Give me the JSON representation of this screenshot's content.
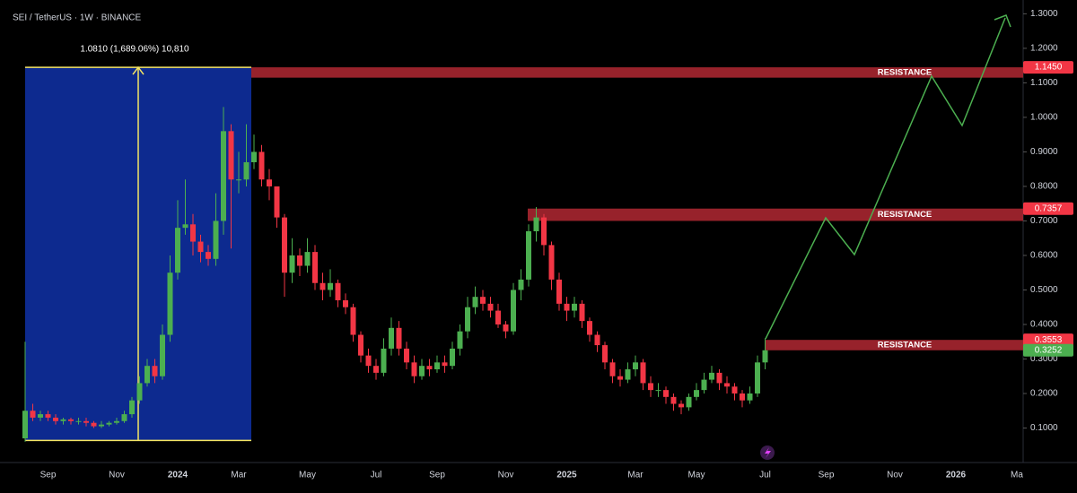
{
  "chart_data": {
    "type": "candlestick",
    "title": "SEI / TetherUS · 1W · BINANCE",
    "categories": [
      null,
      null,
      null,
      "Sep",
      null,
      null,
      null,
      null,
      null,
      null,
      null,
      null,
      "Nov",
      null,
      null,
      null,
      null,
      null,
      null,
      null,
      "2024",
      null,
      null,
      null,
      null,
      null,
      null,
      null,
      "Mar",
      null,
      null,
      null,
      null,
      null,
      null,
      null,
      null,
      "May",
      null,
      null,
      null,
      null,
      null,
      null,
      null,
      null,
      "Jul",
      null,
      null,
      null,
      null,
      null,
      null,
      null,
      "Sep",
      null,
      null,
      null,
      null,
      null,
      null,
      null,
      null,
      "Nov",
      null,
      null,
      null,
      null,
      null,
      null,
      null,
      "2025",
      null,
      null,
      null,
      null,
      null,
      null,
      null,
      null,
      "Mar",
      null,
      null,
      null,
      null,
      null,
      null,
      null,
      "May",
      null,
      null,
      null,
      null,
      null,
      null,
      null,
      null,
      "Jul",
      null,
      null,
      null,
      null,
      null,
      null,
      null,
      "Sep",
      null,
      null,
      null,
      null,
      null,
      null,
      null,
      null,
      "Nov",
      null,
      null,
      null,
      null,
      null,
      null,
      null,
      "2026",
      null,
      null,
      null,
      null,
      null,
      null,
      null,
      "Ma"
    ],
    "open": [
      0.07,
      0.15,
      0.13,
      0.14,
      0.13,
      0.12,
      0.125,
      0.12,
      0.12,
      0.115,
      0.105,
      0.11,
      0.115,
      0.12,
      0.14,
      0.18,
      0.23,
      0.28,
      0.25,
      0.37,
      0.55,
      0.68,
      0.69,
      0.64,
      0.61,
      0.59,
      0.7,
      0.96,
      0.82,
      0.82,
      0.87,
      0.9,
      0.82,
      0.8,
      0.71,
      0.55,
      0.6,
      0.57,
      0.61,
      0.52,
      0.5,
      0.52,
      0.47,
      0.45,
      0.37,
      0.31,
      0.28,
      0.26,
      0.33,
      0.39,
      0.33,
      0.29,
      0.25,
      0.28,
      0.27,
      0.29,
      0.28,
      0.33,
      0.38,
      0.45,
      0.48,
      0.46,
      0.44,
      0.4,
      0.38,
      0.5,
      0.53,
      0.67,
      0.71,
      0.63,
      0.53,
      0.46,
      0.44,
      0.46,
      0.41,
      0.37,
      0.34,
      0.29,
      0.25,
      0.24,
      0.27,
      0.29,
      0.23,
      0.21,
      0.21,
      0.19,
      0.17,
      0.16,
      0.19,
      0.21,
      0.24,
      0.26,
      0.23,
      0.22,
      0.2,
      0.18,
      0.2,
      0.29,
      null,
      null,
      null,
      null,
      null,
      null,
      null,
      null,
      null,
      null,
      null,
      null,
      null,
      null,
      null,
      null,
      null,
      null,
      null,
      null,
      null,
      null,
      null,
      null,
      null,
      null,
      null,
      null,
      null,
      null,
      null,
      null,
      null
    ],
    "high": [
      0.35,
      0.17,
      0.15,
      0.15,
      0.14,
      0.13,
      0.13,
      0.13,
      0.13,
      0.12,
      0.12,
      0.12,
      0.13,
      0.15,
      0.19,
      0.25,
      0.3,
      0.3,
      0.4,
      0.6,
      0.76,
      0.82,
      0.72,
      0.66,
      0.63,
      0.78,
      1.03,
      0.98,
      0.9,
      0.98,
      0.95,
      0.92,
      0.85,
      0.8,
      0.72,
      0.65,
      0.62,
      0.65,
      0.63,
      0.55,
      0.56,
      0.53,
      0.49,
      0.46,
      0.38,
      0.33,
      0.3,
      0.36,
      0.42,
      0.41,
      0.35,
      0.31,
      0.3,
      0.3,
      0.31,
      0.31,
      0.35,
      0.4,
      0.48,
      0.51,
      0.5,
      0.48,
      0.46,
      0.41,
      0.52,
      0.56,
      0.69,
      0.74,
      0.72,
      0.64,
      0.55,
      0.48,
      0.48,
      0.47,
      0.42,
      0.38,
      0.35,
      0.3,
      0.27,
      0.29,
      0.31,
      0.3,
      0.25,
      0.23,
      0.22,
      0.2,
      0.18,
      0.2,
      0.23,
      0.26,
      0.28,
      0.27,
      0.25,
      0.23,
      0.21,
      0.22,
      0.31,
      0.36,
      null,
      null,
      null,
      null,
      null,
      null,
      null,
      null,
      null,
      null,
      null,
      null,
      null,
      null,
      null,
      null,
      null,
      null,
      null,
      null,
      null,
      null,
      null,
      null,
      null,
      null,
      null,
      null,
      null,
      null,
      null,
      null,
      null
    ],
    "low": [
      0.06,
      0.12,
      0.12,
      0.12,
      0.11,
      0.11,
      0.11,
      0.11,
      0.105,
      0.1,
      0.1,
      0.105,
      0.11,
      0.115,
      0.13,
      0.17,
      0.22,
      0.23,
      0.24,
      0.35,
      0.53,
      0.66,
      0.6,
      0.58,
      0.57,
      0.57,
      0.66,
      0.62,
      0.78,
      0.8,
      0.85,
      0.8,
      0.76,
      0.68,
      0.48,
      0.52,
      0.54,
      0.55,
      0.5,
      0.47,
      0.48,
      0.45,
      0.43,
      0.35,
      0.29,
      0.26,
      0.24,
      0.25,
      0.31,
      0.31,
      0.27,
      0.23,
      0.24,
      0.25,
      0.26,
      0.26,
      0.27,
      0.31,
      0.36,
      0.43,
      0.44,
      0.42,
      0.39,
      0.36,
      0.37,
      0.47,
      0.51,
      0.64,
      0.6,
      0.5,
      0.44,
      0.41,
      0.42,
      0.39,
      0.35,
      0.32,
      0.27,
      0.23,
      0.22,
      0.23,
      0.25,
      0.21,
      0.19,
      0.19,
      0.17,
      0.15,
      0.14,
      0.15,
      0.18,
      0.2,
      0.23,
      0.21,
      0.2,
      0.18,
      0.16,
      0.17,
      0.19,
      0.27,
      null,
      null,
      null,
      null,
      null,
      null,
      null,
      null,
      null,
      null,
      null,
      null,
      null,
      null,
      null,
      null,
      null,
      null,
      null,
      null,
      null,
      null,
      null,
      null,
      null,
      null,
      null,
      null,
      null,
      null,
      null,
      null,
      null
    ],
    "close": [
      0.15,
      0.13,
      0.14,
      0.13,
      0.12,
      0.125,
      0.12,
      0.12,
      0.115,
      0.105,
      0.11,
      0.115,
      0.12,
      0.14,
      0.18,
      0.23,
      0.28,
      0.25,
      0.37,
      0.55,
      0.68,
      0.69,
      0.64,
      0.61,
      0.59,
      0.7,
      0.96,
      0.82,
      0.82,
      0.87,
      0.9,
      0.82,
      0.8,
      0.71,
      0.55,
      0.6,
      0.57,
      0.61,
      0.52,
      0.5,
      0.52,
      0.47,
      0.45,
      0.37,
      0.31,
      0.28,
      0.26,
      0.33,
      0.39,
      0.33,
      0.29,
      0.25,
      0.28,
      0.27,
      0.29,
      0.28,
      0.33,
      0.38,
      0.45,
      0.48,
      0.46,
      0.44,
      0.4,
      0.38,
      0.5,
      0.53,
      0.67,
      0.71,
      0.63,
      0.53,
      0.46,
      0.44,
      0.46,
      0.41,
      0.37,
      0.34,
      0.29,
      0.25,
      0.24,
      0.27,
      0.29,
      0.23,
      0.21,
      0.21,
      0.19,
      0.17,
      0.16,
      0.19,
      0.21,
      0.24,
      0.26,
      0.23,
      0.22,
      0.2,
      0.18,
      0.2,
      0.29,
      0.3252,
      null,
      null,
      null,
      null,
      null,
      null,
      null,
      null,
      null,
      null,
      null,
      null,
      null,
      null,
      null,
      null,
      null,
      null,
      null,
      null,
      null,
      null,
      null,
      null,
      null,
      null,
      null,
      null,
      null,
      null,
      null,
      null,
      null
    ],
    "up_color": "#4caf50",
    "down_color": "#f23645",
    "ylim": [
      0,
      1.34
    ],
    "yticks": [
      {
        "value": 0.1,
        "label": "0.1000"
      },
      {
        "value": 0.2,
        "label": "0.2000"
      },
      {
        "value": 0.3,
        "label": "0.3000"
      },
      {
        "value": 0.4,
        "label": "0.4000"
      },
      {
        "value": 0.5,
        "label": "0.5000"
      },
      {
        "value": 0.6,
        "label": "0.6000"
      },
      {
        "value": 0.7,
        "label": "0.7000"
      },
      {
        "value": 0.8,
        "label": "0.8000"
      },
      {
        "value": 0.9,
        "label": "0.9000"
      },
      {
        "value": 1.0,
        "label": "1.0000"
      },
      {
        "value": 1.1,
        "label": "1.1000"
      },
      {
        "value": 1.2,
        "label": "1.2000"
      },
      {
        "value": 1.3,
        "label": "1.3000"
      }
    ],
    "zones": [
      {
        "label": "RESISTANCE",
        "top": 1.145,
        "bottom": 1.115,
        "color": "#b22833"
      },
      {
        "label": "RESISTANCE",
        "top": 0.7357,
        "bottom": 0.7,
        "color": "#b22833"
      },
      {
        "label": "RESISTANCE",
        "top": 0.3553,
        "bottom": 0.3252,
        "color": "#b22833"
      }
    ],
    "price_tags": [
      {
        "value": 1.145,
        "label": "1.1450",
        "color": "#f23645"
      },
      {
        "value": 0.7357,
        "label": "0.7357",
        "color": "#f23645"
      },
      {
        "value": 0.3553,
        "label": "0.3553",
        "color": "#f23645"
      },
      {
        "value": 0.3252,
        "label": "0.3252",
        "color": "#4caf50"
      }
    ],
    "measure": {
      "label": "1.0810 (1,689.06%) 10,810",
      "low": 0.064,
      "high": 1.145,
      "color": "#0d2a8f",
      "line_color": "#f5e663"
    }
  }
}
